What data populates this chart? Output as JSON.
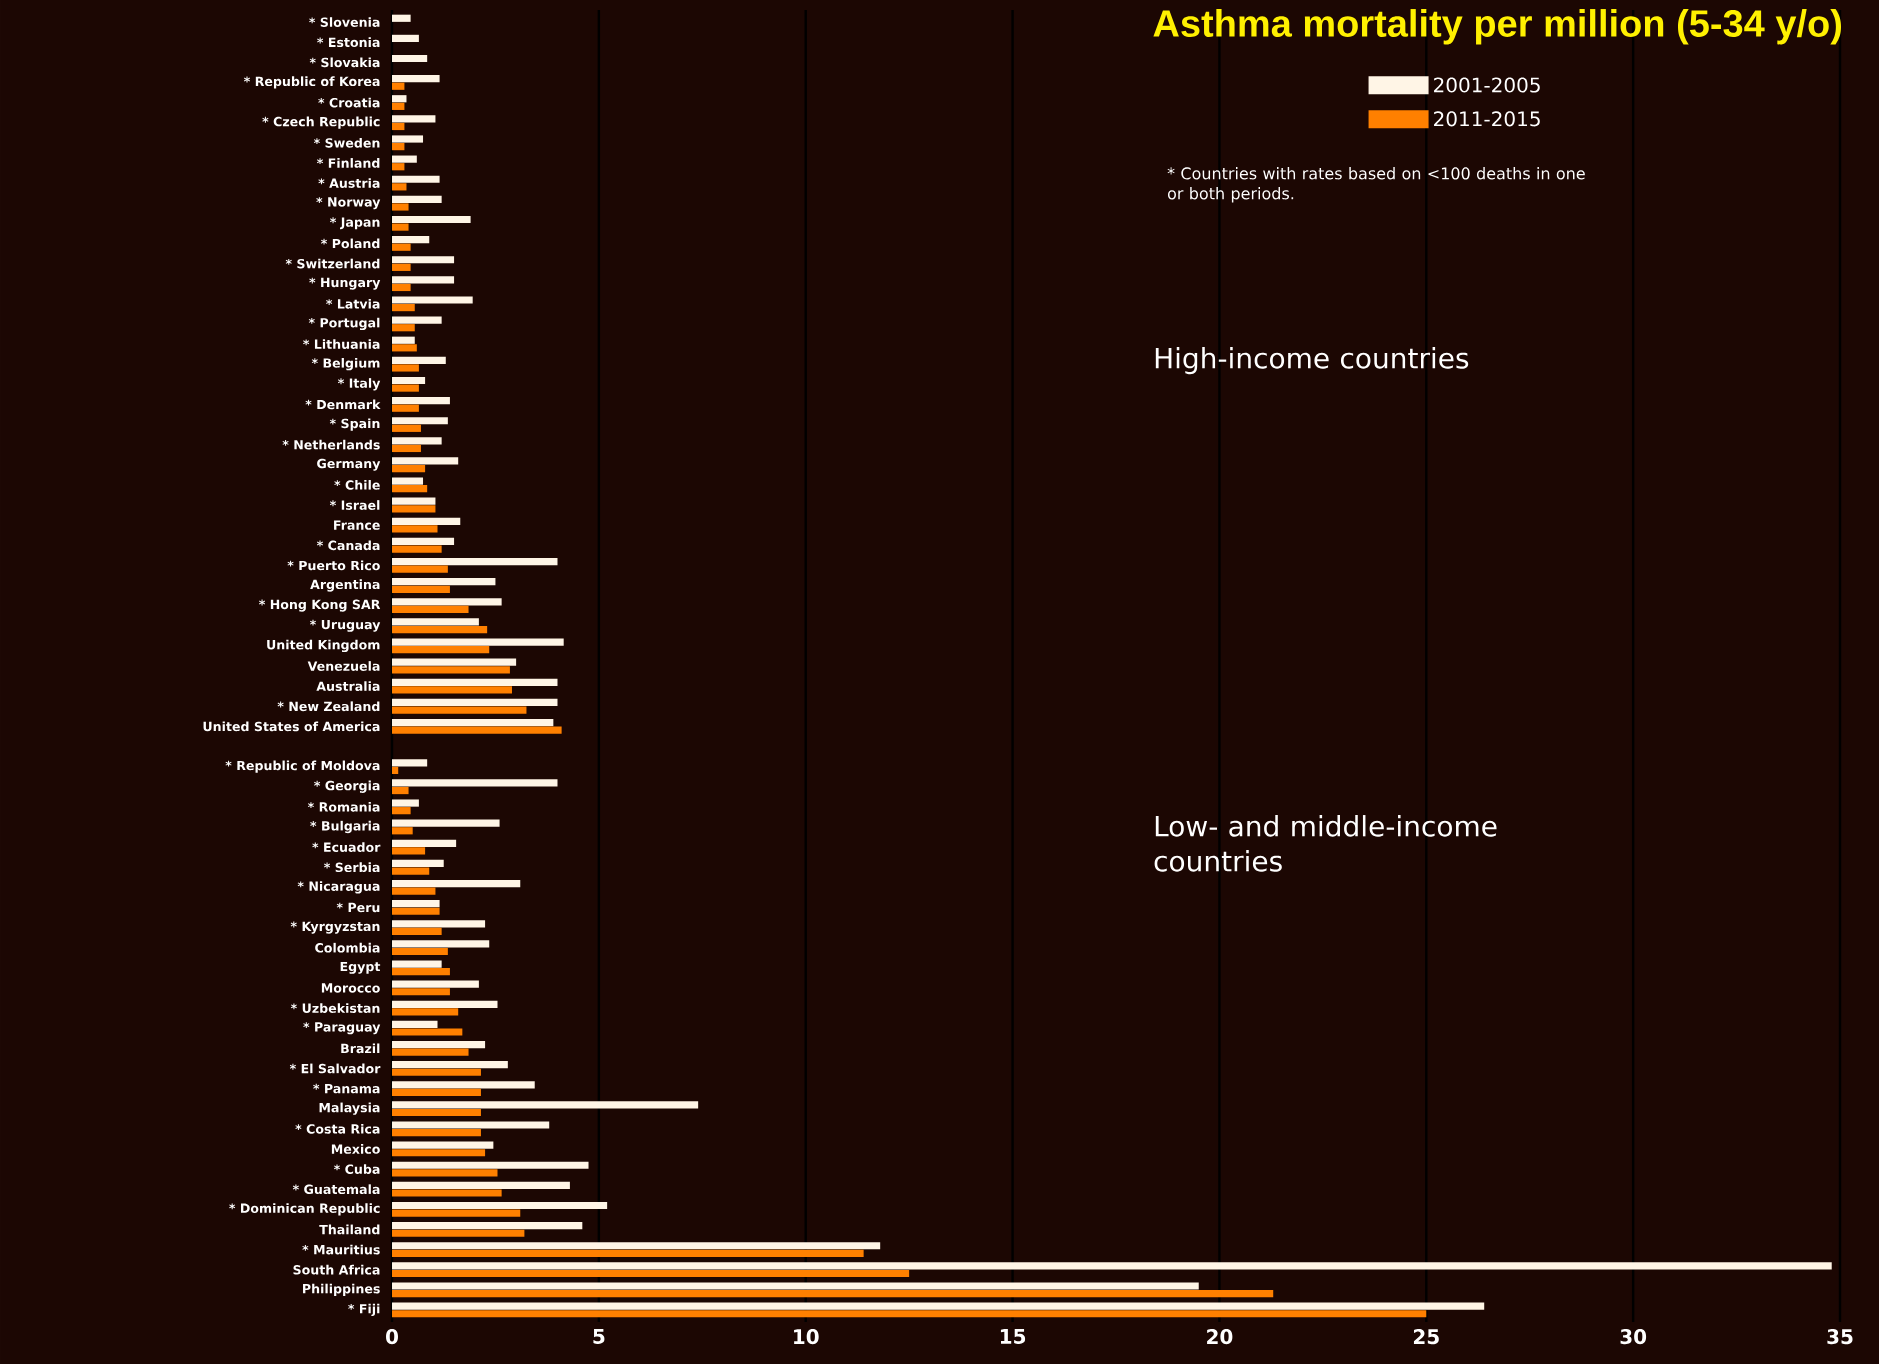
{
  "chart_data": {
    "type": "bar",
    "orientation": "horizontal",
    "title": "Asthma mortality per million (5-34 y/o)",
    "categories": [
      "* Slovenia",
      "* Estonia",
      "* Slovakia",
      "* Republic of Korea",
      "* Croatia",
      "* Czech Republic",
      "* Sweden",
      "* Finland",
      "* Austria",
      "* Norway",
      "* Japan",
      "* Poland",
      "* Switzerland",
      "* Hungary",
      "* Latvia",
      "* Portugal",
      "* Lithuania",
      "* Belgium",
      "* Italy",
      "* Denmark",
      "* Spain",
      "* Netherlands",
      "Germany",
      "* Chile",
      "* Israel",
      "France",
      "* Canada",
      "* Puerto Rico",
      "Argentina",
      "* Hong Kong SAR",
      "* Uruguay",
      "United Kingdom",
      "Venezuela",
      "Australia",
      "* New Zealand",
      "United States of America",
      null,
      "* Republic of Moldova",
      "* Georgia",
      "* Romania",
      "* Bulgaria",
      "* Ecuador",
      "* Serbia",
      "* Nicaragua",
      "* Peru",
      "* Kyrgyzstan",
      "Colombia",
      "Egypt",
      "Morocco",
      "* Uzbekistan",
      "* Paraguay",
      "Brazil",
      "* El Salvador",
      "* Panama",
      "Malaysia",
      "* Costa Rica",
      "Mexico",
      "* Cuba",
      "* Guatemala",
      "* Dominican Republic",
      "Thailand",
      "* Mauritius",
      "South Africa",
      "Philippines",
      "* Fiji"
    ],
    "series": [
      {
        "name": "2001-2005",
        "color": "#fff5e6",
        "values": [
          0.45,
          0.65,
          0.85,
          1.15,
          0.35,
          1.05,
          0.75,
          0.6,
          1.15,
          1.2,
          1.9,
          0.9,
          1.5,
          1.5,
          1.95,
          1.2,
          0.55,
          1.3,
          0.8,
          1.4,
          1.35,
          1.2,
          1.6,
          0.75,
          1.05,
          1.65,
          1.5,
          4.0,
          2.5,
          2.65,
          2.1,
          4.15,
          3.0,
          4.0,
          4.0,
          3.9,
          null,
          0.85,
          4.0,
          0.65,
          2.6,
          1.55,
          1.25,
          3.1,
          1.15,
          2.25,
          2.35,
          1.2,
          2.1,
          2.55,
          1.1,
          2.25,
          2.8,
          3.45,
          7.4,
          3.8,
          2.45,
          4.75,
          4.3,
          5.2,
          4.6,
          11.8,
          34.8,
          19.5,
          26.4
        ]
      },
      {
        "name": "2011-2015",
        "color": "#ff8000",
        "values": [
          null,
          null,
          null,
          0.3,
          0.3,
          0.3,
          0.3,
          0.3,
          0.35,
          0.4,
          0.4,
          0.45,
          0.45,
          0.45,
          0.55,
          0.55,
          0.6,
          0.65,
          0.65,
          0.65,
          0.7,
          0.7,
          0.8,
          0.85,
          1.05,
          1.1,
          1.2,
          1.35,
          1.4,
          1.85,
          2.3,
          2.35,
          2.85,
          2.9,
          3.25,
          4.1,
          null,
          0.15,
          0.4,
          0.45,
          0.5,
          0.8,
          0.9,
          1.05,
          1.15,
          1.2,
          1.35,
          1.4,
          1.4,
          1.6,
          1.7,
          1.85,
          2.15,
          2.15,
          2.15,
          2.15,
          2.25,
          2.55,
          2.65,
          3.1,
          3.2,
          11.4,
          12.5,
          21.3,
          25.0
        ]
      }
    ],
    "xlim": [
      0,
      35
    ],
    "xticks": [
      0,
      5,
      10,
      15,
      20,
      25,
      30,
      35
    ],
    "grid": "x",
    "legend": "top right",
    "annotations": [
      "* Countries with rates based on <100 deaths in one or both periods.",
      "High-income countries",
      "Low- and middle-income countries"
    ]
  }
}
